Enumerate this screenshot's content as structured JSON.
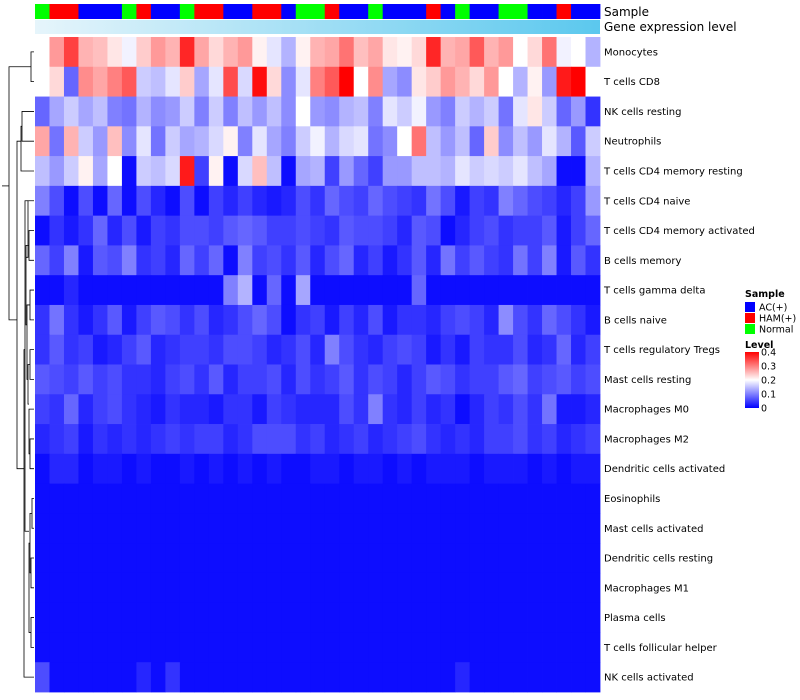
{
  "chart_data": {
    "type": "heatmap",
    "annotation_tracks": {
      "sample_label": "Sample",
      "expression_label": "Gene expression level"
    },
    "sample_groups": [
      "Normal",
      "HAM",
      "HAM",
      "AC",
      "AC",
      "AC",
      "Normal",
      "HAM",
      "AC",
      "AC",
      "Normal",
      "HAM",
      "HAM",
      "AC",
      "AC",
      "HAM",
      "HAM",
      "AC",
      "Normal",
      "Normal",
      "HAM",
      "AC",
      "AC",
      "Normal",
      "AC",
      "AC",
      "AC",
      "HAM",
      "AC",
      "Normal",
      "AC",
      "AC",
      "Normal",
      "Normal",
      "AC",
      "AC",
      "HAM",
      "AC",
      "AC"
    ],
    "rows": [
      "Monocytes",
      "T cells CD8",
      "NK cells resting",
      "Neutrophils",
      "T cells CD4 memory resting",
      "T cells CD4 naive",
      "T cells CD4 memory activated",
      "B cells memory",
      "T cells gamma delta",
      "B cells naive",
      "T cells regulatory  Tregs",
      "Mast cells resting",
      "Macrophages M0",
      "Macrophages M2",
      "Dendritic cells activated",
      "Eosinophils",
      "Mast cells activated",
      "Dendritic cells resting",
      "Macrophages M1",
      "Plasma cells",
      "T cells follicular helper",
      "NK cells activated"
    ],
    "values": [
      [
        0.2,
        0.28,
        0.35,
        0.26,
        0.25,
        0.22,
        0.19,
        0.24,
        0.28,
        0.26,
        0.37,
        0.27,
        0.23,
        0.26,
        0.28,
        0.21,
        0.18,
        0.14,
        0.21,
        0.26,
        0.27,
        0.31,
        0.25,
        0.27,
        0.22,
        0.21,
        0.23,
        0.37,
        0.26,
        0.27,
        0.33,
        0.26,
        0.28,
        0.2,
        0.23,
        0.31,
        0.19,
        0.2,
        0.14
      ],
      [
        0.2,
        0.23,
        0.08,
        0.29,
        0.27,
        0.3,
        0.33,
        0.16,
        0.15,
        0.18,
        0.24,
        0.13,
        0.18,
        0.34,
        0.17,
        0.39,
        0.23,
        0.11,
        0.18,
        0.3,
        0.33,
        0.4,
        0.2,
        0.29,
        0.13,
        0.11,
        0.22,
        0.24,
        0.28,
        0.26,
        0.23,
        0.28,
        0.2,
        0.14,
        0.21,
        0.12,
        0.38,
        0.4,
        0.2
      ],
      [
        0.08,
        0.13,
        0.16,
        0.13,
        0.15,
        0.1,
        0.09,
        0.14,
        0.11,
        0.12,
        0.16,
        0.1,
        0.16,
        0.1,
        0.15,
        0.12,
        0.15,
        0.11,
        0.2,
        0.12,
        0.11,
        0.14,
        0.15,
        0.1,
        0.18,
        0.16,
        0.19,
        0.12,
        0.1,
        0.16,
        0.14,
        0.16,
        0.09,
        0.18,
        0.22,
        0.16,
        0.08,
        0.12,
        0.04
      ],
      [
        0.27,
        0.09,
        0.26,
        0.16,
        0.12,
        0.25,
        0.11,
        0.18,
        0.09,
        0.16,
        0.13,
        0.14,
        0.17,
        0.21,
        0.1,
        0.18,
        0.13,
        0.1,
        0.16,
        0.19,
        0.14,
        0.17,
        0.18,
        0.09,
        0.11,
        0.2,
        0.31,
        0.15,
        0.12,
        0.15,
        0.08,
        0.24,
        0.11,
        0.15,
        0.12,
        0.18,
        0.14,
        0.07,
        0.16
      ],
      [
        0.15,
        0.12,
        0.16,
        0.21,
        0.13,
        0.2,
        0.01,
        0.16,
        0.15,
        0.17,
        0.38,
        0.05,
        0.21,
        0.01,
        0.17,
        0.25,
        0.15,
        0.01,
        0.13,
        0.14,
        0.05,
        0.12,
        0.08,
        0.05,
        0.12,
        0.12,
        0.15,
        0.15,
        0.14,
        0.18,
        0.16,
        0.17,
        0.16,
        0.18,
        0.15,
        0.13,
        0.01,
        0.01,
        0.14
      ],
      [
        0.1,
        0.06,
        0.01,
        0.06,
        0.01,
        0.08,
        0.01,
        0.06,
        0.03,
        0.01,
        0.06,
        0.01,
        0.05,
        0.03,
        0.05,
        0.03,
        0.02,
        0.03,
        0.06,
        0.04,
        0.08,
        0.06,
        0.05,
        0.08,
        0.06,
        0.05,
        0.04,
        0.09,
        0.06,
        0.02,
        0.05,
        0.04,
        0.1,
        0.08,
        0.06,
        0.05,
        0.03,
        0.05,
        0.12
      ],
      [
        0.01,
        0.04,
        0.02,
        0.04,
        0.08,
        0.03,
        0.06,
        0.02,
        0.05,
        0.04,
        0.06,
        0.06,
        0.05,
        0.07,
        0.08,
        0.07,
        0.05,
        0.05,
        0.06,
        0.05,
        0.04,
        0.07,
        0.06,
        0.06,
        0.05,
        0.03,
        0.07,
        0.06,
        0.01,
        0.03,
        0.05,
        0.06,
        0.04,
        0.05,
        0.05,
        0.07,
        0.02,
        0.05,
        0.08
      ],
      [
        0.08,
        0.05,
        0.1,
        0.02,
        0.07,
        0.06,
        0.1,
        0.04,
        0.05,
        0.03,
        0.08,
        0.05,
        0.08,
        0.01,
        0.1,
        0.05,
        0.06,
        0.04,
        0.07,
        0.03,
        0.06,
        0.08,
        0.03,
        0.05,
        0.02,
        0.04,
        0.07,
        0.03,
        0.09,
        0.05,
        0.07,
        0.05,
        0.04,
        0.09,
        0.05,
        0.1,
        0.02,
        0.07,
        0.04
      ],
      [
        0.01,
        0.01,
        0.03,
        0.01,
        0.01,
        0.01,
        0.01,
        0.01,
        0.01,
        0.01,
        0.01,
        0.01,
        0.01,
        0.1,
        0.14,
        0.01,
        0.08,
        0.01,
        0.13,
        0.01,
        0.01,
        0.01,
        0.01,
        0.01,
        0.01,
        0.01,
        0.08,
        0.01,
        0.01,
        0.01,
        0.01,
        0.01,
        0.01,
        0.01,
        0.01,
        0.01,
        0.01,
        0.01,
        0.01
      ],
      [
        0.04,
        0.09,
        0.04,
        0.02,
        0.04,
        0.07,
        0.02,
        0.05,
        0.07,
        0.06,
        0.04,
        0.06,
        0.03,
        0.04,
        0.06,
        0.08,
        0.06,
        0.01,
        0.04,
        0.05,
        0.02,
        0.05,
        0.03,
        0.06,
        0.02,
        0.04,
        0.04,
        0.03,
        0.05,
        0.06,
        0.05,
        0.03,
        0.11,
        0.06,
        0.04,
        0.08,
        0.06,
        0.04,
        0.02
      ],
      [
        0.04,
        0.07,
        0.04,
        0.05,
        0.02,
        0.03,
        0.05,
        0.07,
        0.03,
        0.04,
        0.05,
        0.05,
        0.04,
        0.06,
        0.06,
        0.05,
        0.03,
        0.04,
        0.06,
        0.03,
        0.1,
        0.06,
        0.04,
        0.03,
        0.05,
        0.06,
        0.05,
        0.02,
        0.04,
        0.02,
        0.05,
        0.04,
        0.04,
        0.06,
        0.03,
        0.04,
        0.08,
        0.03,
        0.05
      ],
      [
        0.07,
        0.06,
        0.05,
        0.07,
        0.05,
        0.06,
        0.04,
        0.04,
        0.03,
        0.05,
        0.06,
        0.04,
        0.07,
        0.03,
        0.05,
        0.05,
        0.06,
        0.03,
        0.06,
        0.04,
        0.05,
        0.07,
        0.04,
        0.06,
        0.05,
        0.03,
        0.05,
        0.07,
        0.06,
        0.04,
        0.05,
        0.05,
        0.07,
        0.08,
        0.05,
        0.06,
        0.07,
        0.05,
        0.06
      ],
      [
        0.05,
        0.04,
        0.08,
        0.03,
        0.05,
        0.06,
        0.04,
        0.03,
        0.02,
        0.04,
        0.03,
        0.03,
        0.02,
        0.04,
        0.04,
        0.02,
        0.05,
        0.04,
        0.03,
        0.03,
        0.03,
        0.06,
        0.04,
        0.1,
        0.04,
        0.03,
        0.05,
        0.03,
        0.04,
        0.01,
        0.03,
        0.05,
        0.04,
        0.06,
        0.04,
        0.09,
        0.02,
        0.02,
        0.03
      ],
      [
        0.03,
        0.04,
        0.05,
        0.02,
        0.04,
        0.03,
        0.04,
        0.03,
        0.04,
        0.05,
        0.04,
        0.05,
        0.05,
        0.03,
        0.04,
        0.06,
        0.06,
        0.06,
        0.04,
        0.05,
        0.03,
        0.04,
        0.05,
        0.03,
        0.04,
        0.05,
        0.06,
        0.04,
        0.03,
        0.04,
        0.03,
        0.05,
        0.05,
        0.06,
        0.04,
        0.05,
        0.03,
        0.04,
        0.05
      ],
      [
        0.01,
        0.03,
        0.03,
        0.01,
        0.02,
        0.02,
        0.01,
        0.02,
        0.01,
        0.01,
        0.02,
        0.01,
        0.02,
        0.01,
        0.02,
        0.01,
        0.02,
        0.01,
        0.01,
        0.02,
        0.02,
        0.01,
        0.02,
        0.02,
        0.01,
        0.02,
        0.01,
        0.02,
        0.02,
        0.02,
        0.01,
        0.02,
        0.02,
        0.02,
        0.01,
        0.02,
        0.01,
        0.02,
        0.02
      ],
      [
        0.01,
        0.01,
        0.01,
        0.01,
        0.01,
        0.01,
        0.01,
        0.01,
        0.01,
        0.01,
        0.01,
        0.01,
        0.01,
        0.01,
        0.01,
        0.01,
        0.01,
        0.01,
        0.01,
        0.01,
        0.01,
        0.01,
        0.01,
        0.01,
        0.01,
        0.01,
        0.01,
        0.01,
        0.01,
        0.01,
        0.01,
        0.01,
        0.01,
        0.01,
        0.01,
        0.01,
        0.01,
        0.01,
        0.01
      ],
      [
        0.01,
        0.01,
        0.01,
        0.01,
        0.01,
        0.01,
        0.01,
        0.01,
        0.01,
        0.01,
        0.01,
        0.01,
        0.01,
        0.01,
        0.01,
        0.01,
        0.01,
        0.01,
        0.01,
        0.01,
        0.01,
        0.01,
        0.01,
        0.01,
        0.01,
        0.01,
        0.01,
        0.01,
        0.01,
        0.01,
        0.01,
        0.01,
        0.01,
        0.01,
        0.01,
        0.01,
        0.01,
        0.01,
        0.01
      ],
      [
        0.01,
        0.01,
        0.01,
        0.01,
        0.01,
        0.01,
        0.01,
        0.01,
        0.01,
        0.01,
        0.01,
        0.01,
        0.01,
        0.01,
        0.01,
        0.01,
        0.01,
        0.01,
        0.01,
        0.01,
        0.01,
        0.01,
        0.01,
        0.01,
        0.01,
        0.01,
        0.01,
        0.01,
        0.01,
        0.01,
        0.01,
        0.01,
        0.01,
        0.01,
        0.01,
        0.01,
        0.01,
        0.01,
        0.01
      ],
      [
        0.01,
        0.01,
        0.01,
        0.01,
        0.01,
        0.01,
        0.01,
        0.01,
        0.01,
        0.01,
        0.01,
        0.01,
        0.01,
        0.01,
        0.01,
        0.01,
        0.01,
        0.01,
        0.01,
        0.01,
        0.01,
        0.01,
        0.01,
        0.01,
        0.01,
        0.01,
        0.01,
        0.01,
        0.01,
        0.01,
        0.01,
        0.01,
        0.01,
        0.01,
        0.01,
        0.01,
        0.01,
        0.01,
        0.01
      ],
      [
        0.01,
        0.01,
        0.01,
        0.01,
        0.01,
        0.01,
        0.01,
        0.01,
        0.01,
        0.01,
        0.01,
        0.01,
        0.01,
        0.01,
        0.01,
        0.01,
        0.01,
        0.01,
        0.01,
        0.01,
        0.01,
        0.01,
        0.01,
        0.01,
        0.01,
        0.01,
        0.01,
        0.01,
        0.01,
        0.01,
        0.01,
        0.01,
        0.01,
        0.01,
        0.01,
        0.01,
        0.01,
        0.01,
        0.01
      ],
      [
        0.01,
        0.01,
        0.01,
        0.01,
        0.01,
        0.01,
        0.01,
        0.01,
        0.01,
        0.01,
        0.01,
        0.01,
        0.01,
        0.01,
        0.01,
        0.01,
        0.01,
        0.01,
        0.01,
        0.01,
        0.01,
        0.01,
        0.01,
        0.01,
        0.01,
        0.01,
        0.01,
        0.01,
        0.01,
        0.01,
        0.01,
        0.01,
        0.01,
        0.01,
        0.01,
        0.01,
        0.01,
        0.01,
        0.01
      ],
      [
        0.06,
        0.01,
        0.01,
        0.01,
        0.01,
        0.01,
        0.01,
        0.03,
        0.01,
        0.04,
        0.01,
        0.01,
        0.01,
        0.01,
        0.01,
        0.01,
        0.01,
        0.01,
        0.01,
        0.01,
        0.01,
        0.01,
        0.01,
        0.01,
        0.01,
        0.01,
        0.01,
        0.01,
        0.01,
        0.03,
        0.01,
        0.01,
        0.01,
        0.01,
        0.01,
        0.01,
        0.01,
        0.01,
        0.01
      ]
    ],
    "color_scale": {
      "min": 0,
      "mid": 0.2,
      "max": 0.4,
      "low": "#0000ff",
      "mid_color": "#ffffff",
      "high": "#ff0000"
    },
    "legend": {
      "position": "right",
      "sample_title": "Sample",
      "sample_items": [
        {
          "key": "AC",
          "label": "AC(+)",
          "color": "#0000ff"
        },
        {
          "key": "HAM",
          "label": "HAM(+)",
          "color": "#ff0000"
        },
        {
          "key": "Normal",
          "label": "Normal",
          "color": "#00ff00"
        }
      ],
      "level_title": "Level",
      "level_ticks": [
        "0.4",
        "0.3",
        "0.2",
        "0.1",
        "0"
      ],
      "level_tick_values": [
        0.4,
        0.3,
        0.2,
        0.1,
        0
      ]
    },
    "expression_track_colors": {
      "left": "#e6f5fb",
      "right": "#5bc8ee"
    }
  }
}
